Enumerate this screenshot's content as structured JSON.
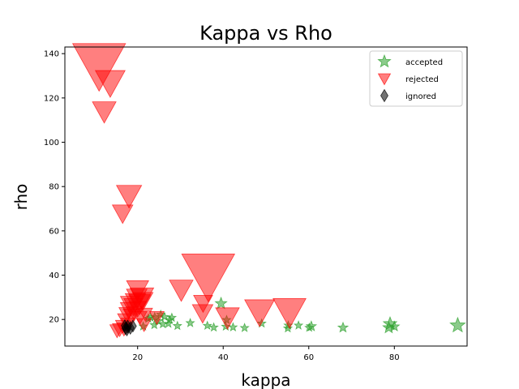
{
  "chart_data": {
    "type": "scatter",
    "title": "Kappa vs Rho",
    "xlabel": "kappa",
    "ylabel": "rho",
    "xlim": [
      3,
      97
    ],
    "ylim": [
      8,
      143
    ],
    "xticks": [
      20,
      40,
      60,
      80
    ],
    "yticks": [
      20,
      40,
      60,
      80,
      100,
      120,
      140
    ],
    "legend_position": "top-right",
    "series": [
      {
        "name": "accepted",
        "marker": "star",
        "color": "#2ca02c",
        "alpha": 0.55,
        "points": [
          {
            "x": 94.8,
            "y": 17.3,
            "s": 5
          },
          {
            "x": 79.0,
            "y": 18.0,
            "s": 4
          },
          {
            "x": 78.7,
            "y": 16.3,
            "s": 3
          },
          {
            "x": 80.0,
            "y": 16.8,
            "s": 2
          },
          {
            "x": 39.5,
            "y": 27.2,
            "s": 3
          },
          {
            "x": 68.0,
            "y": 16.3,
            "s": 2
          },
          {
            "x": 60.6,
            "y": 16.9,
            "s": 2
          },
          {
            "x": 60.1,
            "y": 16.3,
            "s": 1
          },
          {
            "x": 57.6,
            "y": 17.3,
            "s": 1
          },
          {
            "x": 55.1,
            "y": 16.0,
            "s": 1
          },
          {
            "x": 55.2,
            "y": 17.3,
            "s": 1
          },
          {
            "x": 49.0,
            "y": 18.2,
            "s": 1
          },
          {
            "x": 45.0,
            "y": 16.2,
            "s": 1
          },
          {
            "x": 42.3,
            "y": 16.5,
            "s": 1
          },
          {
            "x": 40.8,
            "y": 19.8,
            "s": 1
          },
          {
            "x": 40.6,
            "y": 16.8,
            "s": 1
          },
          {
            "x": 37.8,
            "y": 16.4,
            "s": 1
          },
          {
            "x": 36.3,
            "y": 17.2,
            "s": 1
          },
          {
            "x": 32.3,
            "y": 18.4,
            "s": 1
          },
          {
            "x": 29.3,
            "y": 17.1,
            "s": 1
          },
          {
            "x": 28.0,
            "y": 20.8,
            "s": 1
          },
          {
            "x": 27.5,
            "y": 19.8,
            "s": 1
          },
          {
            "x": 27.2,
            "y": 18.1,
            "s": 1
          },
          {
            "x": 26.3,
            "y": 21.2,
            "s": 1
          },
          {
            "x": 25.9,
            "y": 17.9,
            "s": 1
          },
          {
            "x": 25.4,
            "y": 22.2,
            "s": 1
          },
          {
            "x": 24.8,
            "y": 19.3,
            "s": 1
          },
          {
            "x": 24.0,
            "y": 21.2,
            "s": 1
          },
          {
            "x": 23.9,
            "y": 17.5,
            "s": 1
          },
          {
            "x": 23.0,
            "y": 20.9,
            "s": 1
          },
          {
            "x": 22.5,
            "y": 20.4,
            "s": 1
          },
          {
            "x": 21.3,
            "y": 16.9,
            "s": 1
          }
        ]
      },
      {
        "name": "rejected",
        "marker": "triangle_down",
        "color": "#ff0000",
        "alpha": 0.5,
        "points": [
          {
            "x": 11.0,
            "y": 135.0,
            "s": 28
          },
          {
            "x": 13.6,
            "y": 127.0,
            "s": 13
          },
          {
            "x": 12.2,
            "y": 114.0,
            "s": 9
          },
          {
            "x": 18.0,
            "y": 76.0,
            "s": 10
          },
          {
            "x": 16.5,
            "y": 68.0,
            "s": 7
          },
          {
            "x": 36.5,
            "y": 40.0,
            "s": 28
          },
          {
            "x": 30.2,
            "y": 33.5,
            "s": 9
          },
          {
            "x": 35.3,
            "y": 27.5,
            "s": 6
          },
          {
            "x": 35.2,
            "y": 23.0,
            "s": 7
          },
          {
            "x": 41.0,
            "y": 21.0,
            "s": 9
          },
          {
            "x": 48.5,
            "y": 23.5,
            "s": 13
          },
          {
            "x": 55.5,
            "y": 23.5,
            "s": 15
          },
          {
            "x": 20.0,
            "y": 33.5,
            "s": 8
          },
          {
            "x": 21.0,
            "y": 30.0,
            "s": 9
          },
          {
            "x": 19.8,
            "y": 30.0,
            "s": 7
          },
          {
            "x": 19.5,
            "y": 28.0,
            "s": 7
          },
          {
            "x": 20.5,
            "y": 27.2,
            "s": 8
          },
          {
            "x": 21.2,
            "y": 28.5,
            "s": 7
          },
          {
            "x": 18.2,
            "y": 27.0,
            "s": 6
          },
          {
            "x": 19.0,
            "y": 26.0,
            "s": 6
          },
          {
            "x": 20.0,
            "y": 25.0,
            "s": 5
          },
          {
            "x": 18.0,
            "y": 24.5,
            "s": 5
          },
          {
            "x": 17.5,
            "y": 22.5,
            "s": 4
          },
          {
            "x": 18.5,
            "y": 21.8,
            "s": 4
          },
          {
            "x": 19.2,
            "y": 23.0,
            "s": 4
          },
          {
            "x": 21.8,
            "y": 22.5,
            "s": 3
          },
          {
            "x": 20.5,
            "y": 21.0,
            "s": 3
          },
          {
            "x": 24.5,
            "y": 21.0,
            "s": 3
          },
          {
            "x": 21.5,
            "y": 17.8,
            "s": 3
          },
          {
            "x": 17.0,
            "y": 20.0,
            "s": 3
          },
          {
            "x": 17.8,
            "y": 18.0,
            "s": 3
          },
          {
            "x": 16.5,
            "y": 17.0,
            "s": 3
          },
          {
            "x": 15.8,
            "y": 15.5,
            "s": 3
          },
          {
            "x": 15.2,
            "y": 15.0,
            "s": 3
          },
          {
            "x": 16.8,
            "y": 15.8,
            "s": 3
          }
        ]
      },
      {
        "name": "ignored",
        "marker": "diamond",
        "color": "#000000",
        "alpha": 0.55,
        "points": [
          {
            "x": 17.2,
            "y": 16.0,
            "s": 3
          },
          {
            "x": 17.7,
            "y": 16.8,
            "s": 3
          },
          {
            "x": 18.3,
            "y": 16.2,
            "s": 3
          },
          {
            "x": 17.5,
            "y": 15.5,
            "s": 3
          },
          {
            "x": 18.9,
            "y": 17.0,
            "s": 2
          },
          {
            "x": 17.0,
            "y": 17.2,
            "s": 2
          }
        ]
      }
    ]
  }
}
